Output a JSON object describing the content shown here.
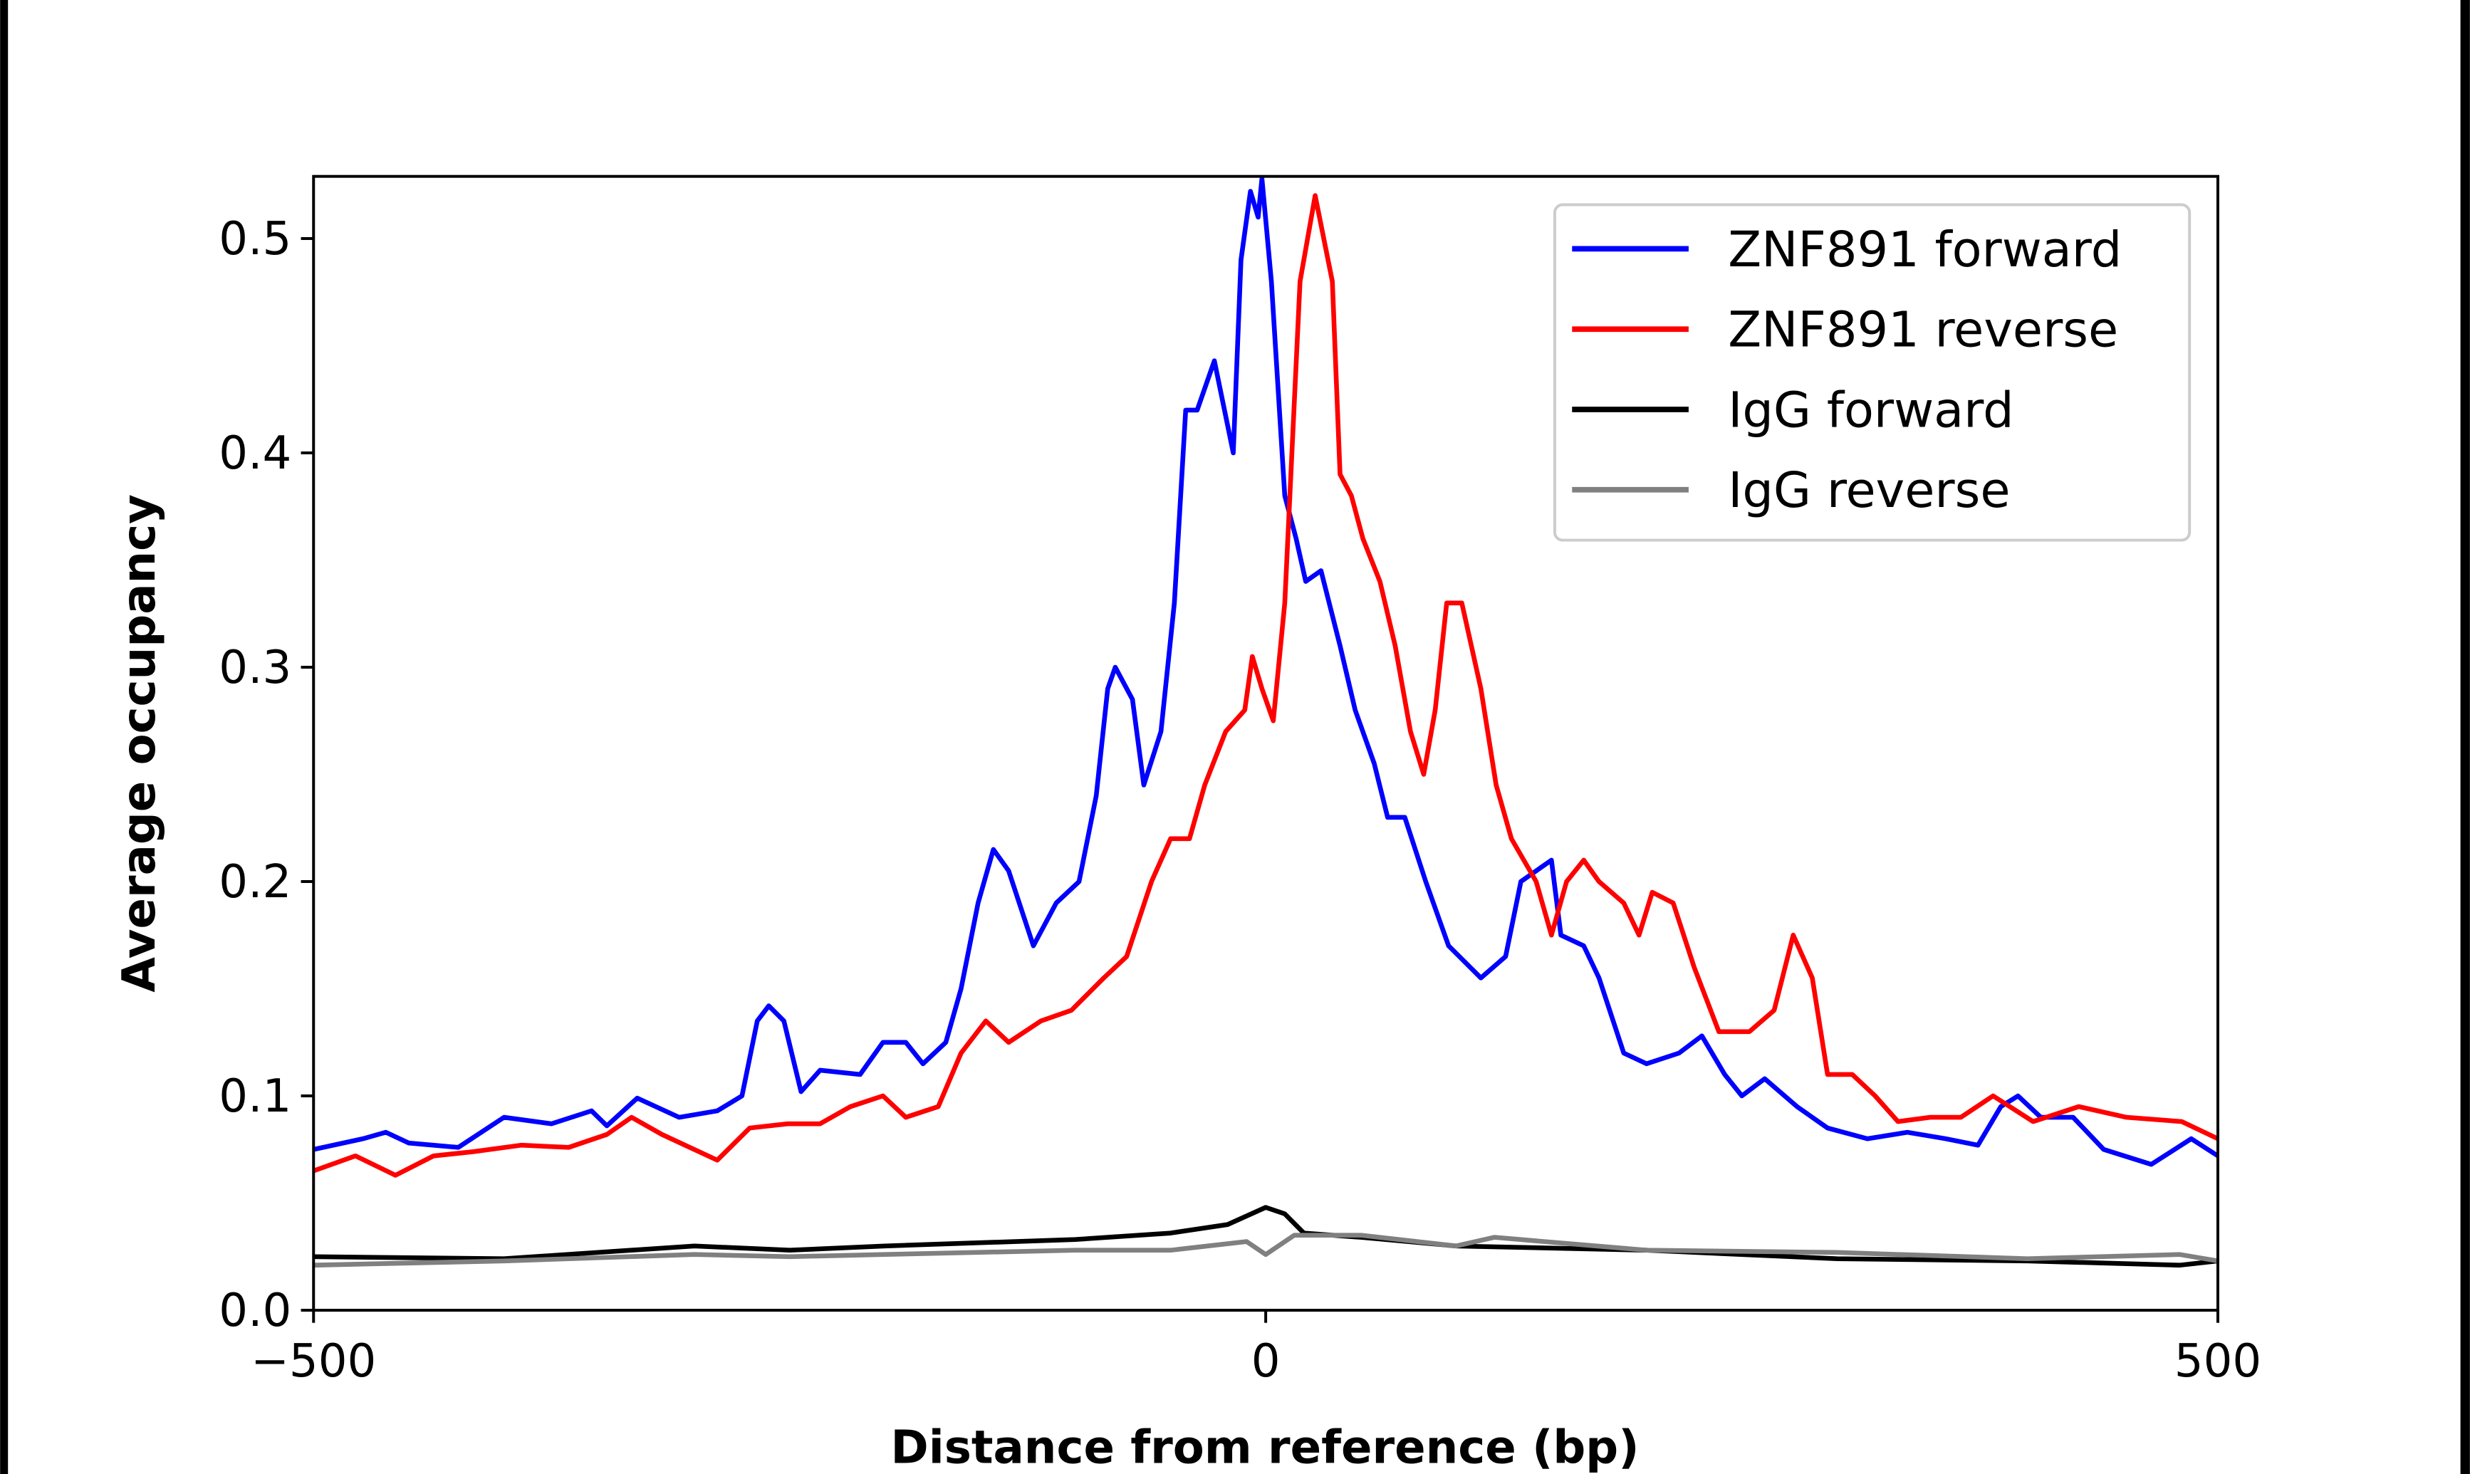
{
  "chart_data": {
    "type": "line",
    "title": "",
    "xlabel": "Distance from reference (bp)",
    "ylabel": "Average occupancy",
    "xlim": [
      -500,
      500
    ],
    "ylim": [
      0,
      0.529
    ],
    "xticks": [
      -500,
      0,
      500
    ],
    "xtick_labels": [
      "−500",
      "0",
      "500"
    ],
    "yticks": [
      0.0,
      0.1,
      0.2,
      0.3,
      0.4,
      0.5
    ],
    "ytick_labels": [
      "0.0",
      "0.1",
      "0.2",
      "0.3",
      "0.4",
      "0.5"
    ],
    "grid": false,
    "legend_position": "top-right",
    "series": [
      {
        "name": "ZNF891 forward",
        "color": "#0000ff",
        "x": [
          -500,
          -474,
          -462,
          -450,
          -424,
          -400,
          -375,
          -354,
          -346,
          -330,
          -308,
          -288,
          -275,
          -267,
          -261,
          -253,
          -244,
          -234,
          -213,
          -201,
          -189,
          -180,
          -168,
          -160,
          -151,
          -143,
          -135,
          -122,
          -110,
          -98,
          -89,
          -83,
          -79,
          -70,
          -64,
          -55,
          -48,
          -42,
          -36,
          -27,
          -17,
          -13,
          -8,
          -4,
          -2,
          3,
          10,
          16,
          21,
          29,
          39,
          47,
          57,
          64,
          73,
          84,
          96,
          113,
          126,
          134,
          142,
          150,
          155,
          167,
          175,
          188,
          200,
          217,
          229,
          241,
          250,
          262,
          279,
          295,
          316,
          337,
          357,
          374,
          386,
          395,
          407,
          424,
          440,
          465,
          486,
          500
        ],
        "y": [
          0.075,
          0.08,
          0.083,
          0.078,
          0.076,
          0.09,
          0.087,
          0.093,
          0.086,
          0.099,
          0.09,
          0.093,
          0.1,
          0.135,
          0.142,
          0.135,
          0.102,
          0.112,
          0.11,
          0.125,
          0.125,
          0.115,
          0.125,
          0.15,
          0.19,
          0.215,
          0.205,
          0.17,
          0.19,
          0.2,
          0.24,
          0.29,
          0.3,
          0.285,
          0.245,
          0.27,
          0.33,
          0.42,
          0.42,
          0.443,
          0.4,
          0.49,
          0.522,
          0.51,
          0.528,
          0.48,
          0.38,
          0.36,
          0.34,
          0.345,
          0.31,
          0.28,
          0.255,
          0.23,
          0.23,
          0.2,
          0.17,
          0.155,
          0.165,
          0.2,
          0.205,
          0.21,
          0.175,
          0.17,
          0.155,
          0.12,
          0.115,
          0.12,
          0.128,
          0.11,
          0.1,
          0.108,
          0.095,
          0.085,
          0.08,
          0.083,
          0.08,
          0.077,
          0.095,
          0.1,
          0.09,
          0.09,
          0.075,
          0.068,
          0.08,
          0.072
        ]
      },
      {
        "name": "ZNF891 reverse",
        "color": "#ff0000",
        "x": [
          -500,
          -478,
          -457,
          -437,
          -416,
          -391,
          -366,
          -346,
          -333,
          -317,
          -288,
          -271,
          -251,
          -234,
          -218,
          -201,
          -189,
          -172,
          -160,
          -147,
          -135,
          -118,
          -102,
          -85,
          -73,
          -60,
          -50,
          -40,
          -32,
          -21,
          -11,
          -7,
          -2,
          4,
          10,
          18,
          26,
          35,
          39,
          45,
          51,
          60,
          68,
          76,
          83,
          89,
          95,
          103,
          113,
          121,
          129,
          142,
          150,
          158,
          167,
          175,
          188,
          196,
          203,
          214,
          225,
          238,
          254,
          267,
          277,
          287,
          295,
          308,
          320,
          332,
          349,
          365,
          382,
          403,
          427,
          452,
          481,
          500
        ],
        "y": [
          0.065,
          0.072,
          0.063,
          0.072,
          0.074,
          0.077,
          0.076,
          0.082,
          0.09,
          0.082,
          0.07,
          0.085,
          0.087,
          0.087,
          0.095,
          0.1,
          0.09,
          0.095,
          0.12,
          0.135,
          0.125,
          0.135,
          0.14,
          0.155,
          0.165,
          0.2,
          0.22,
          0.22,
          0.245,
          0.27,
          0.28,
          0.305,
          0.29,
          0.275,
          0.33,
          0.48,
          0.52,
          0.48,
          0.39,
          0.38,
          0.36,
          0.34,
          0.31,
          0.27,
          0.25,
          0.28,
          0.33,
          0.33,
          0.29,
          0.245,
          0.22,
          0.2,
          0.175,
          0.2,
          0.21,
          0.2,
          0.19,
          0.175,
          0.195,
          0.19,
          0.16,
          0.13,
          0.13,
          0.14,
          0.175,
          0.155,
          0.11,
          0.11,
          0.1,
          0.088,
          0.09,
          0.09,
          0.1,
          0.088,
          0.095,
          0.09,
          0.088,
          0.08
        ]
      },
      {
        "name": "IgG forward",
        "color": "#000000",
        "x": [
          -500,
          -400,
          -300,
          -250,
          -200,
          -100,
          -50,
          -20,
          0,
          10,
          20,
          50,
          100,
          200,
          300,
          400,
          480,
          500
        ],
        "y": [
          0.025,
          0.024,
          0.03,
          0.028,
          0.03,
          0.033,
          0.036,
          0.04,
          0.048,
          0.045,
          0.036,
          0.034,
          0.03,
          0.028,
          0.024,
          0.023,
          0.021,
          0.023
        ]
      },
      {
        "name": "IgG reverse",
        "color": "#808080",
        "x": [
          -500,
          -400,
          -300,
          -250,
          -200,
          -100,
          -50,
          -10,
          0,
          15,
          50,
          100,
          120,
          200,
          300,
          400,
          480,
          500
        ],
        "y": [
          0.021,
          0.023,
          0.026,
          0.025,
          0.026,
          0.028,
          0.028,
          0.032,
          0.026,
          0.035,
          0.035,
          0.03,
          0.034,
          0.028,
          0.027,
          0.024,
          0.026,
          0.023
        ]
      }
    ]
  }
}
